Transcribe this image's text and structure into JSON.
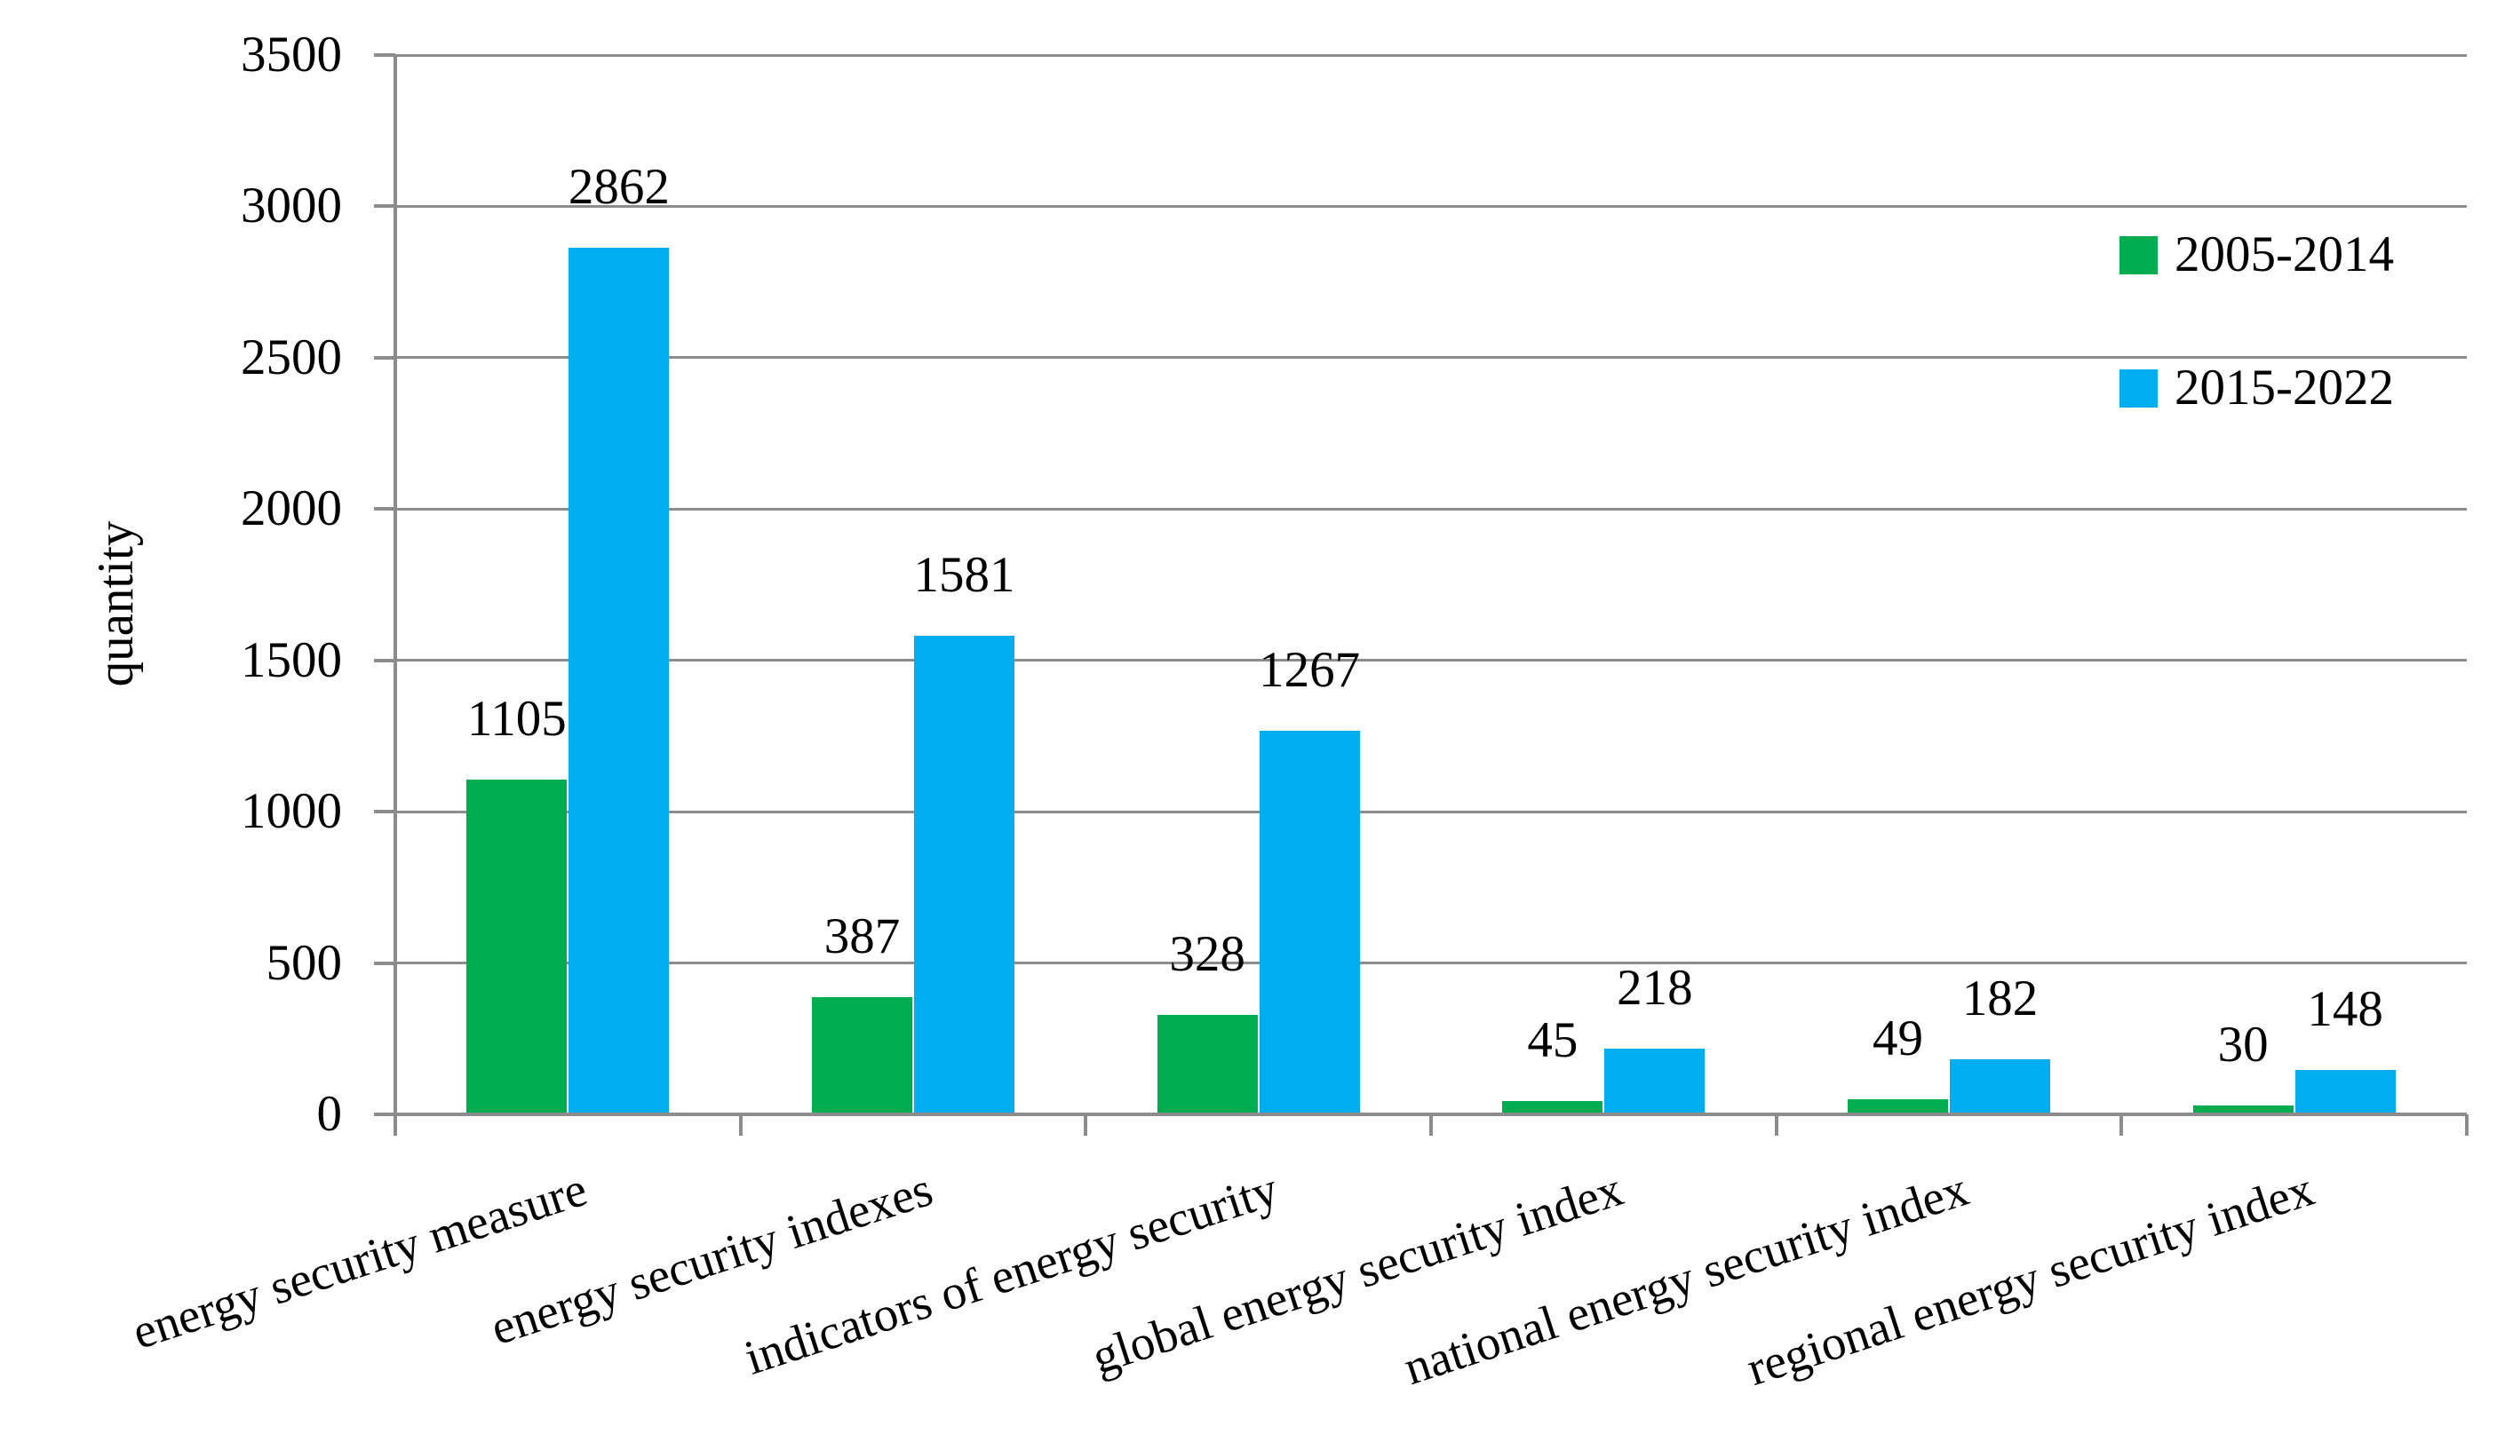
{
  "chart_data": {
    "type": "bar",
    "title": "",
    "ylabel": "quantity",
    "xlabel": "",
    "categories": [
      "energy security measure",
      "energy security indexes",
      "indicators of energy security",
      "global energy security index",
      "national energy security index",
      "regional energy security index"
    ],
    "series": [
      {
        "name": "2005-2014",
        "color": "#00AC50",
        "values": [
          1105,
          387,
          328,
          45,
          49,
          30
        ]
      },
      {
        "name": "2015-2022",
        "color": "#00AEEF",
        "values": [
          2862,
          1581,
          1267,
          218,
          182,
          148
        ]
      }
    ],
    "data_labels_shown": true,
    "ylim": [
      0,
      3500
    ],
    "ytick_step": 500,
    "grid": true,
    "grid_color": "#8C8C8C",
    "axis_color": "#8C8C8C",
    "legend_position": "upper-right",
    "label_color": "#000000"
  }
}
